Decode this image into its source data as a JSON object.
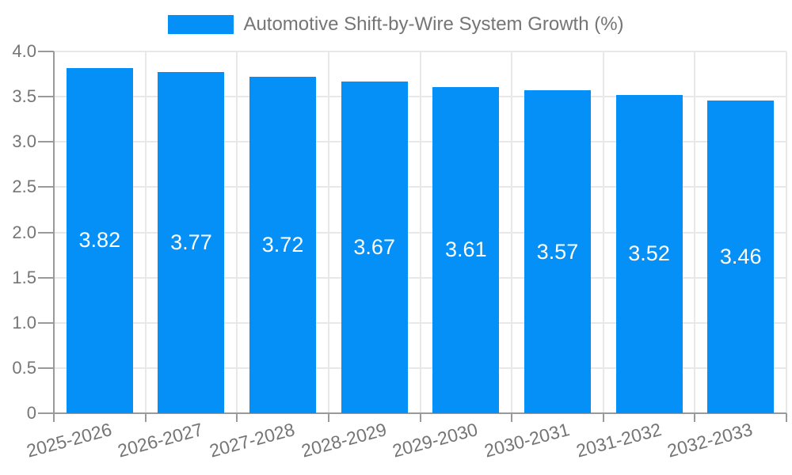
{
  "legend": {
    "label": "Automotive Shift-by-Wire System Growth (%)"
  },
  "chart_data": {
    "type": "bar",
    "title": "Automotive Shift-by-Wire System Growth (%)",
    "categories": [
      "2025-2026",
      "2026-2027",
      "2027-2028",
      "2028-2029",
      "2029-2030",
      "2030-2031",
      "2031-2032",
      "2032-2033"
    ],
    "values": [
      3.82,
      3.77,
      3.72,
      3.67,
      3.61,
      3.57,
      3.52,
      3.46
    ],
    "value_labels": [
      "3.82",
      "3.77",
      "3.72",
      "3.67",
      "3.61",
      "3.57",
      "3.52",
      "3.46"
    ],
    "xlabel": "",
    "ylabel": "",
    "ylim": [
      0,
      4
    ],
    "y_ticks": [
      "4.0",
      "3.5",
      "3.0",
      "2.5",
      "2.0",
      "1.5",
      "1.0",
      "0.5",
      "0"
    ],
    "y_tick_values": [
      4.0,
      3.5,
      3.0,
      2.5,
      2.0,
      1.5,
      1.0,
      0.5,
      0
    ],
    "grid": true,
    "legend_position": "top-center",
    "colors": {
      "bar": "#0590f8",
      "grid": "#e8e8e8",
      "axis": "#9a9a9a",
      "text": "#757575",
      "value_label": "#ffffff",
      "background": "#ffffff"
    }
  }
}
